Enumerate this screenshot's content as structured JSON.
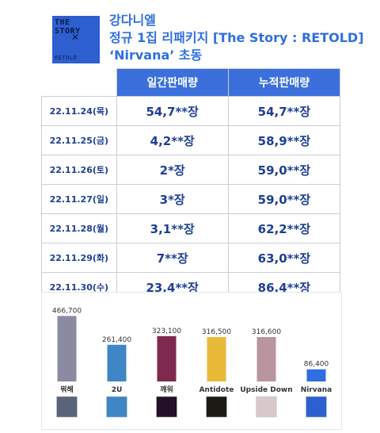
{
  "header": {
    "album_cover": {
      "title_text": "THE STORY",
      "sub_text": "RETOLD"
    },
    "line1": "강다니엘",
    "line2": "정규 1집 리패키지 [The Story : RETOLD]",
    "line3": "‘Nirvana’ 초동"
  },
  "table": {
    "headers": [
      "일간판매량",
      "누적판매량"
    ],
    "rows": [
      {
        "date": "22.11.24(목)",
        "daily": "54,7**장",
        "cumulative": "54,7**장"
      },
      {
        "date": "22.11.25(금)",
        "daily": "4,2**장",
        "cumulative": "58,9**장"
      },
      {
        "date": "22.11.26(토)",
        "daily": "2*장",
        "cumulative": "59,0**장"
      },
      {
        "date": "22.11.27(일)",
        "daily": "3*장",
        "cumulative": "59,0**장"
      },
      {
        "date": "22.11.28(월)",
        "daily": "3,1**장",
        "cumulative": "62,2**장"
      },
      {
        "date": "22.11.29(화)",
        "daily": "7**장",
        "cumulative": "63,0**장"
      },
      {
        "date": "22.11.30(수)",
        "daily": "23,4**장",
        "cumulative": "86,4**장"
      }
    ]
  },
  "chart_data": {
    "type": "bar",
    "title": "",
    "xlabel": "",
    "ylabel": "",
    "ylim": [
      0,
      520000
    ],
    "grid": false,
    "categories": [
      "뭐해",
      "2U",
      "깨워",
      "Antidote",
      "Upside Down",
      "Nirvana"
    ],
    "values": [
      466700,
      261400,
      323100,
      316500,
      316600,
      86400
    ],
    "value_labels": [
      "466,700",
      "261,400",
      "323,100",
      "316,500",
      "316,600",
      "86,400"
    ],
    "colors": [
      "#8a8aa2",
      "#3f86c6",
      "#7d2a4e",
      "#e9b93a",
      "#b9959e",
      "#2e6ee0"
    ]
  },
  "thumb_colors": [
    "#5a6478",
    "#3f86c6",
    "#25102a",
    "#1c1a14",
    "#d7c9c9",
    "#2e5fd1"
  ]
}
